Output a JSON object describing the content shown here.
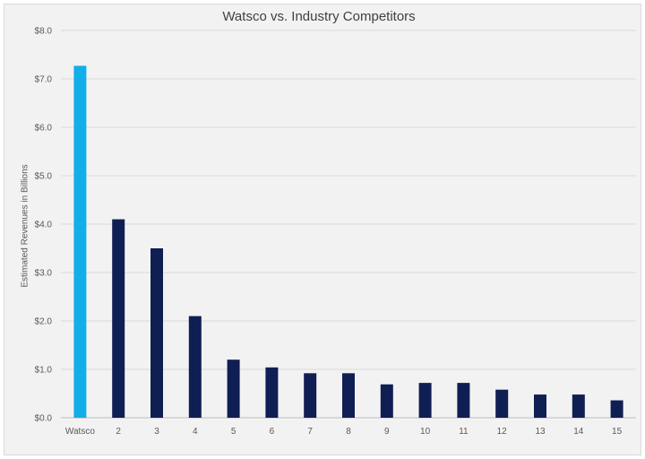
{
  "chart_data": {
    "type": "bar",
    "title": "Watsco vs. Industry Competitors",
    "xlabel": "",
    "ylabel": "Estimated Revenues in Billions",
    "categories": [
      "Watsco",
      "2",
      "3",
      "4",
      "5",
      "6",
      "7",
      "8",
      "9",
      "10",
      "11",
      "12",
      "13",
      "14",
      "15"
    ],
    "values": [
      7.27,
      4.1,
      3.5,
      2.1,
      1.2,
      1.04,
      0.92,
      0.92,
      0.69,
      0.72,
      0.72,
      0.58,
      0.48,
      0.48,
      0.36
    ],
    "ylim": [
      0,
      8
    ],
    "yticks": [
      "$0.0",
      "$1.0",
      "$2.0",
      "$3.0",
      "$4.0",
      "$5.0",
      "$6.0",
      "$7.0",
      "$8.0"
    ],
    "grid": true,
    "legend": "none",
    "colors": {
      "highlight": "#12aeea",
      "bar": "#0f1f54",
      "grid": "#d9d9d9",
      "axis": "#bfbfbf"
    }
  }
}
